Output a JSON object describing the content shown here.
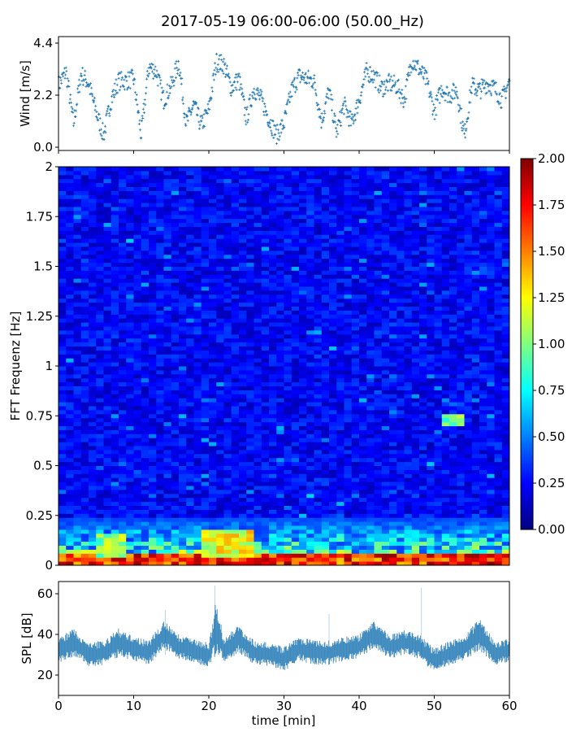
{
  "figure": {
    "title": "2017-05-19 06:00-06:00 (50.00_Hz)"
  },
  "chart_data": [
    {
      "type": "scatter",
      "panel": "wind",
      "ylabel": "Wind [m/s]",
      "xlabel": "",
      "ylim": [
        0,
        4.4
      ],
      "xlim": [
        0,
        60
      ],
      "yticks": [
        0.0,
        2.2,
        4.4
      ],
      "ytick_labels": [
        "0.0",
        "2.2",
        "4.4"
      ],
      "xticks": [
        0,
        10,
        20,
        30,
        40,
        50,
        60
      ],
      "grid": false,
      "marker": "+",
      "color": "#1f77b4",
      "series": [
        {
          "x": [
            0,
            1,
            2,
            3,
            4,
            5,
            6,
            7,
            8,
            9,
            10,
            11,
            12,
            13,
            14,
            15,
            16,
            17,
            18,
            19,
            20,
            21,
            22,
            23,
            24,
            25,
            26,
            27,
            28,
            29,
            30,
            31,
            32,
            33,
            34,
            35,
            36,
            37,
            38,
            39,
            40,
            41,
            42,
            43,
            44,
            45,
            46,
            47,
            48,
            49,
            50,
            51,
            52,
            53,
            54,
            55,
            56,
            57,
            58,
            59,
            60
          ],
          "y": [
            2.6,
            3.2,
            1.0,
            3.1,
            2.7,
            1.5,
            0.5,
            2.0,
            2.8,
            2.8,
            2.9,
            0.5,
            3.4,
            3.2,
            2.0,
            2.6,
            3.6,
            1.0,
            1.8,
            0.9,
            1.6,
            3.6,
            3.5,
            2.5,
            2.9,
            1.2,
            2.5,
            2.0,
            1.2,
            0.5,
            1.0,
            2.4,
            3.0,
            2.9,
            2.8,
            1.1,
            2.4,
            0.6,
            1.8,
            1.0,
            2.0,
            3.2,
            3.0,
            2.5,
            2.7,
            2.6,
            2.0,
            3.7,
            3.3,
            2.8,
            1.5,
            2.5,
            2.2,
            2.4,
            0.5,
            2.6,
            2.4,
            2.7,
            2.5,
            2.0,
            2.8
          ]
        }
      ]
    },
    {
      "type": "heatmap",
      "panel": "spectrogram",
      "ylabel": "FFT Frequenz [Hz]",
      "xlabel": "",
      "ylim": [
        0,
        2
      ],
      "xlim": [
        0,
        60
      ],
      "yticks": [
        0,
        0.25,
        0.5,
        0.75,
        1,
        1.25,
        1.5,
        1.75,
        2
      ],
      "ytick_labels": [
        "0",
        "0.25",
        "0.5",
        "0.75",
        "1",
        "1.25",
        "1.5",
        "1.75",
        "2"
      ],
      "colormap": "jet",
      "colorbar": {
        "range": [
          0,
          2
        ],
        "ticks": [
          0.0,
          0.25,
          0.5,
          0.75,
          1.0,
          1.25,
          1.5,
          1.75,
          2.0
        ],
        "tick_labels": [
          "0.00",
          "0.25",
          "0.50",
          "0.75",
          "1.00",
          "1.25",
          "1.50",
          "1.75",
          "2.00"
        ]
      },
      "background_level": 0.3,
      "features": [
        {
          "note": "strong low-frequency band",
          "freq": [
            0,
            0.05
          ],
          "x": [
            0,
            60
          ],
          "level": 1.8
        },
        {
          "note": "elevated band",
          "freq": [
            0.05,
            0.15
          ],
          "x": [
            5,
            9
          ],
          "level": 1.1
        },
        {
          "note": "elevated band",
          "freq": [
            0.05,
            0.18
          ],
          "x": [
            19,
            26
          ],
          "level": 1.3
        },
        {
          "note": "strong block",
          "freq": [
            0,
            0.04
          ],
          "x": [
            56,
            60
          ],
          "level": 2.0
        },
        {
          "note": "local patch",
          "freq": [
            0.7,
            0.76
          ],
          "x": [
            51,
            54
          ],
          "level": 1.05
        }
      ]
    },
    {
      "type": "line",
      "panel": "spl",
      "ylabel": "SPL [dB]",
      "xlabel": "time [min]",
      "ylim": [
        10,
        66
      ],
      "xlim": [
        0,
        60
      ],
      "yticks": [
        20,
        40,
        60
      ],
      "ytick_labels": [
        "20",
        "40",
        "60"
      ],
      "xticks": [
        0,
        10,
        20,
        30,
        40,
        50,
        60
      ],
      "xtick_labels": [
        "0",
        "10",
        "20",
        "30",
        "40",
        "50",
        "60"
      ],
      "grid": false,
      "color": "#1f77b4",
      "series": [
        {
          "x": [
            0,
            2,
            4,
            6,
            8,
            10,
            12,
            14,
            16,
            18,
            20,
            21,
            22,
            24,
            26,
            28,
            30,
            32,
            34,
            36,
            38,
            40,
            42,
            44,
            46,
            48,
            50,
            52,
            54,
            56,
            58,
            60
          ],
          "y": [
            32,
            36,
            30,
            31,
            36,
            33,
            31,
            40,
            34,
            32,
            30,
            44,
            32,
            38,
            31,
            30,
            28,
            33,
            31,
            31,
            33,
            34,
            40,
            34,
            36,
            34,
            27,
            31,
            33,
            40,
            31,
            32
          ],
          "spread": [
            6,
            7,
            6,
            6,
            7,
            6,
            6,
            7,
            6,
            6,
            6,
            14,
            6,
            7,
            6,
            6,
            6,
            6,
            6,
            6,
            6,
            6,
            7,
            6,
            6,
            6,
            6,
            6,
            6,
            8,
            6,
            6
          ]
        }
      ]
    }
  ]
}
